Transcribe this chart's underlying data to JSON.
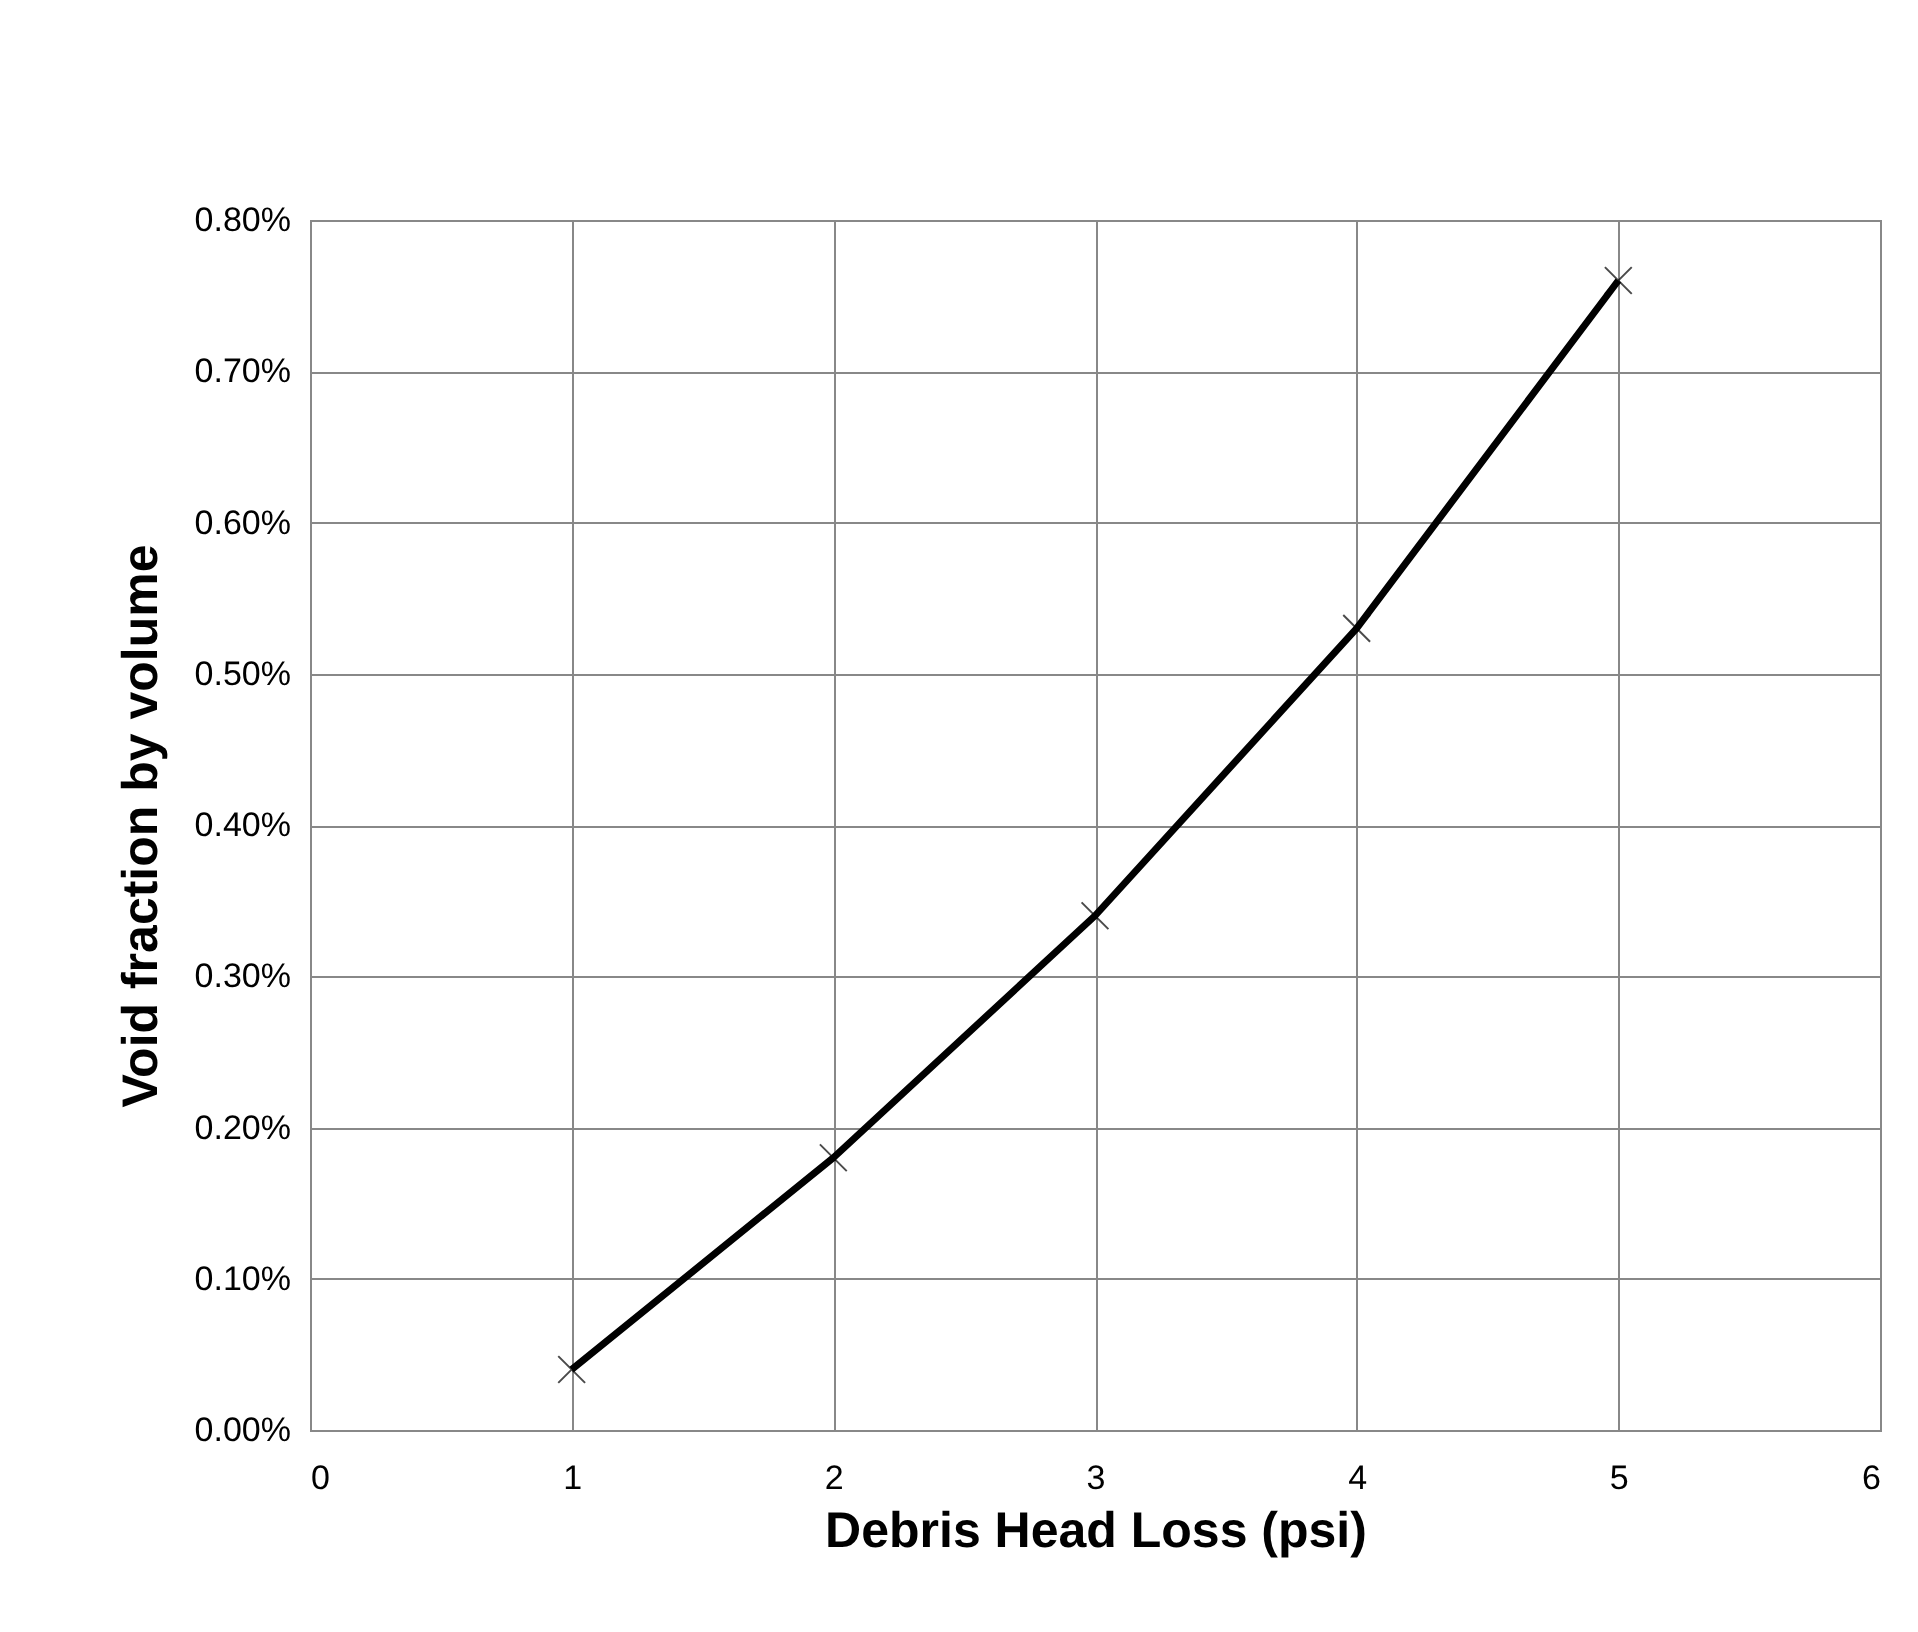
{
  "chart_data": {
    "type": "line",
    "xlabel": "Debris Head Loss (psi)",
    "ylabel": "Void fraction by volume",
    "x": [
      1,
      2,
      3,
      4,
      5
    ],
    "series": [
      {
        "color": "#000000",
        "values": [
          0.04,
          0.18,
          0.34,
          0.53,
          0.76
        ]
      }
    ],
    "xlim": [
      0,
      6
    ],
    "xticks": [
      0,
      1,
      2,
      3,
      4,
      5,
      6
    ],
    "ylim": [
      0,
      0.8
    ],
    "yticks": [
      {
        "value": 0,
        "label": "0.00%"
      },
      {
        "value": 0.1,
        "label": "0.10%"
      },
      {
        "value": 0.2,
        "label": "0.20%"
      },
      {
        "value": 0.3,
        "label": "0.30%"
      },
      {
        "value": 0.4,
        "label": "0.40%"
      },
      {
        "value": 0.5,
        "label": "0.50%"
      },
      {
        "value": 0.6,
        "label": "0.60%"
      },
      {
        "value": 0.7,
        "label": "0.70%"
      },
      {
        "value": 0.8,
        "label": "0.80%"
      }
    ],
    "grid": true,
    "marker": "cross",
    "line_style": "solid"
  }
}
